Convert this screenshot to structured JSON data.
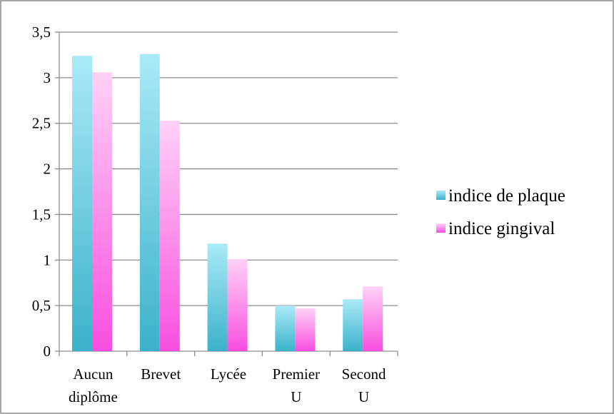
{
  "chart_data": {
    "type": "bar",
    "categories": [
      [
        "Aucun",
        "diplôme"
      ],
      [
        "Brevet"
      ],
      [
        "Lycée"
      ],
      [
        "Premier",
        "U"
      ],
      [
        "Second",
        "U"
      ]
    ],
    "series": [
      {
        "name": "indice de plaque",
        "values": [
          3.24,
          3.26,
          1.18,
          0.5,
          0.57
        ],
        "color_top": "#aaeaf8",
        "color_bottom": "#3bb2ca"
      },
      {
        "name": "indice gingival",
        "values": [
          3.06,
          2.53,
          1.01,
          0.47,
          0.71
        ],
        "color_top": "#ffd2f6",
        "color_bottom": "#f84ee0"
      }
    ],
    "y_ticks": [
      "0",
      "0,5",
      "1",
      "1,5",
      "2",
      "2,5",
      "3",
      "3,5"
    ],
    "ylim": [
      0,
      3.5
    ],
    "grid": true,
    "legend": "right",
    "title": "",
    "xlabel": "",
    "ylabel": ""
  }
}
